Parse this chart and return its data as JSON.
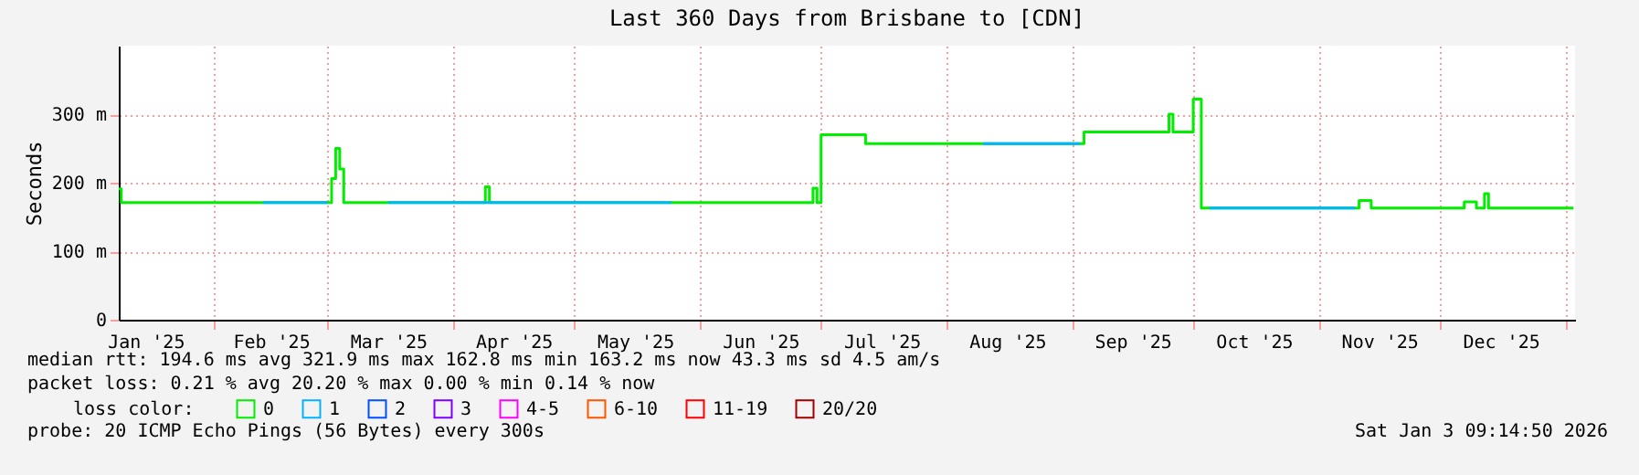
{
  "chart_data": {
    "type": "step",
    "title": "Last 360 Days from Brisbane to [CDN]",
    "ylabel": "Seconds",
    "legend_title": "loss color:",
    "legend": "bottom",
    "grid": true,
    "xlim": [
      "2025-01-08T09:14",
      "2026-01-03T09:14"
    ],
    "xticks": [
      {
        "value": "2025-01-15",
        "label": "Jan '25"
      },
      {
        "value": "2025-02-01",
        "label": null
      },
      {
        "value": "2025-02-15",
        "label": "Feb '25"
      },
      {
        "value": "2025-03-01",
        "label": null
      },
      {
        "value": "2025-03-16",
        "label": "Mar '25"
      },
      {
        "value": "2025-04-01",
        "label": null
      },
      {
        "value": "2025-04-16",
        "label": "Apr '25"
      },
      {
        "value": "2025-05-01",
        "label": null
      },
      {
        "value": "2025-05-16",
        "label": "May '25"
      },
      {
        "value": "2025-06-01",
        "label": null
      },
      {
        "value": "2025-06-16",
        "label": "Jun '25"
      },
      {
        "value": "2025-07-01",
        "label": null
      },
      {
        "value": "2025-07-16",
        "label": "Jul '25"
      },
      {
        "value": "2025-08-01",
        "label": null
      },
      {
        "value": "2025-08-16",
        "label": "Aug '25"
      },
      {
        "value": "2025-09-01",
        "label": null
      },
      {
        "value": "2025-09-16",
        "label": "Sep '25"
      },
      {
        "value": "2025-10-01",
        "label": null
      },
      {
        "value": "2025-10-16",
        "label": "Oct '25"
      },
      {
        "value": "2025-11-01",
        "label": null
      },
      {
        "value": "2025-11-16",
        "label": "Nov '25"
      },
      {
        "value": "2025-12-01",
        "label": null
      },
      {
        "value": "2025-12-16",
        "label": "Dec '25"
      },
      {
        "value": "2026-01-01",
        "label": null
      }
    ],
    "ylim": [
      0,
      400
    ],
    "yticks": [
      0,
      {
        "value": 100,
        "label": "100 m"
      },
      {
        "value": 200,
        "label": "200 m"
      },
      {
        "value": 300,
        "label": "300 m"
      }
    ],
    "series": [
      {
        "name": "0",
        "color": "#00ee00",
        "x": [
          "2025-01-08T09:14",
          "2025-01-09",
          "2025-03-02",
          "2025-03-03",
          "2025-03-04",
          "2025-03-05",
          "2025-04-09",
          "2025-04-10",
          "2025-06-29",
          "2025-06-30",
          "2025-07-01",
          "2025-07-12",
          "2025-09-04",
          "2025-09-25",
          "2025-09-26",
          "2025-10-01",
          "2025-10-03",
          "2025-11-11",
          "2025-11-14",
          "2025-12-07",
          "2025-12-10",
          "2025-12-12",
          "2025-12-13",
          "2026-01-03"
        ],
        "values": [
          191,
          171,
          206,
          250,
          220,
          171,
          194,
          171,
          192,
          171,
          270,
          257,
          274,
          300,
          274,
          322,
          163,
          174,
          163,
          172,
          163,
          184,
          163,
          163
        ]
      },
      {
        "name": "1",
        "color": "#00b4ff",
        "x": [
          "2025-02-13",
          "2025-03-01",
          "2025-03-02",
          "2025-03-16",
          "2025-05-25",
          "2025-05-26",
          "2025-08-10",
          "2025-09-03",
          "2025-09-04",
          "2025-10-05",
          "2025-11-10"
        ],
        "values": [
          171,
          171,
          null,
          171,
          171,
          null,
          257,
          257,
          null,
          163,
          163
        ]
      },
      {
        "name": "2",
        "color": "#0050ff"
      },
      {
        "name": "3",
        "color": "#7e00ff"
      },
      {
        "name": "4-5",
        "color": "#ff00ff"
      },
      {
        "name": "6-10",
        "color": "#ff5500"
      },
      {
        "name": "11-19",
        "color": "#ff0000"
      },
      {
        "name": "20/20",
        "color": "#a00000"
      }
    ],
    "annotations": [
      "median rtt:  194.6 ms avg  321.9 ms max  162.8 ms min  163.2 ms now  43.3 ms sd  4.5   am/s",
      "packet loss: 0.21 % avg  20.20 % max  0.00 % min  0.14 % now",
      "probe:        20 ICMP Echo Pings (56 Bytes) every 300s",
      "Sat Jan  3 09:14:50 2026"
    ]
  }
}
